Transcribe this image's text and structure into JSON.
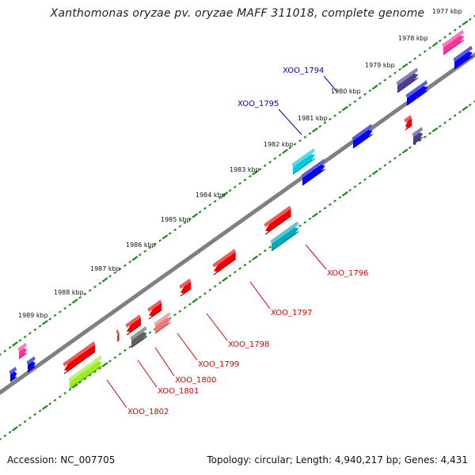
{
  "title": "Xanthomonas oryzae pv. oryzae MAFF 311018, complete genome",
  "footer": {
    "accession": "Accession: NC_007705",
    "summary": "Topology: circular; Length: 4,940,217 bp; Genes: 4,431"
  },
  "colors": {
    "backbone": "#808080",
    "tick": "#1a8a1a",
    "plus_label": "#0000dd",
    "minus_label": "#dd0000"
  },
  "scale": {
    "labels": [
      "1977 kbp",
      "1978 kbp",
      "1979 kbp",
      "1980 kbp",
      "1981 kbp",
      "1982 kbp",
      "1983 kbp",
      "1984 kbp",
      "1985 kbp",
      "1986 kbp",
      "1987 kbp",
      "1988 kbp",
      "1989 kbp"
    ]
  },
  "gene_labels": [
    {
      "name": "XOO_1794",
      "strand": "plus"
    },
    {
      "name": "XOO_1795",
      "strand": "plus"
    },
    {
      "name": "XOO_1796",
      "strand": "minus"
    },
    {
      "name": "XOO_1797",
      "strand": "minus"
    },
    {
      "name": "XOO_1798",
      "strand": "minus"
    },
    {
      "name": "XOO_1799",
      "strand": "minus"
    },
    {
      "name": "XOO_1800",
      "strand": "minus"
    },
    {
      "name": "XOO_1801",
      "strand": "minus"
    },
    {
      "name": "XOO_1802",
      "strand": "minus"
    }
  ],
  "genes": [
    {
      "color": "#ff3399",
      "strand": "outer",
      "dir": 1
    },
    {
      "color": "#0000ee",
      "strand": "inner",
      "dir": 1
    },
    {
      "color": "#4b3f8f",
      "strand": "outer",
      "dir": 1
    },
    {
      "color": "#0000ee",
      "strand": "inner",
      "dir": 1
    },
    {
      "color": "#0000ee",
      "strand": "outer",
      "dir": 1
    },
    {
      "color": "#ee0000",
      "strand": "outer",
      "dir": -1
    },
    {
      "color": "#4b3f8f",
      "strand": "inner",
      "dir": 1
    },
    {
      "color": "#00ccdd",
      "strand": "outer",
      "dir": 1
    },
    {
      "color": "#0000ee",
      "strand": "inner",
      "dir": 1
    },
    {
      "color": "#ee0000",
      "strand": "outer",
      "dir": -1
    },
    {
      "color": "#00aabb",
      "strand": "inner",
      "dir": 1
    },
    {
      "color": "#ee0000",
      "strand": "outer",
      "dir": -1
    },
    {
      "color": "#ee0000",
      "strand": "outer",
      "dir": -1
    },
    {
      "color": "#ee0000",
      "strand": "outer",
      "dir": -1
    },
    {
      "color": "#ee7777",
      "strand": "inner",
      "dir": 1
    },
    {
      "color": "#ee0000",
      "strand": "outer",
      "dir": -1
    },
    {
      "color": "#606060",
      "strand": "inner",
      "dir": 1
    },
    {
      "color": "#ee0000",
      "strand": "outer",
      "dir": -1
    },
    {
      "color": "#ee0000",
      "strand": "outer",
      "dir": -1
    },
    {
      "color": "#99ee22",
      "strand": "inner",
      "dir": 1
    },
    {
      "color": "#ff3399",
      "strand": "outer",
      "dir": 1
    },
    {
      "color": "#0000ee",
      "strand": "outer",
      "dir": 1
    },
    {
      "color": "#0000ee",
      "strand": "inner",
      "dir": 1
    }
  ]
}
